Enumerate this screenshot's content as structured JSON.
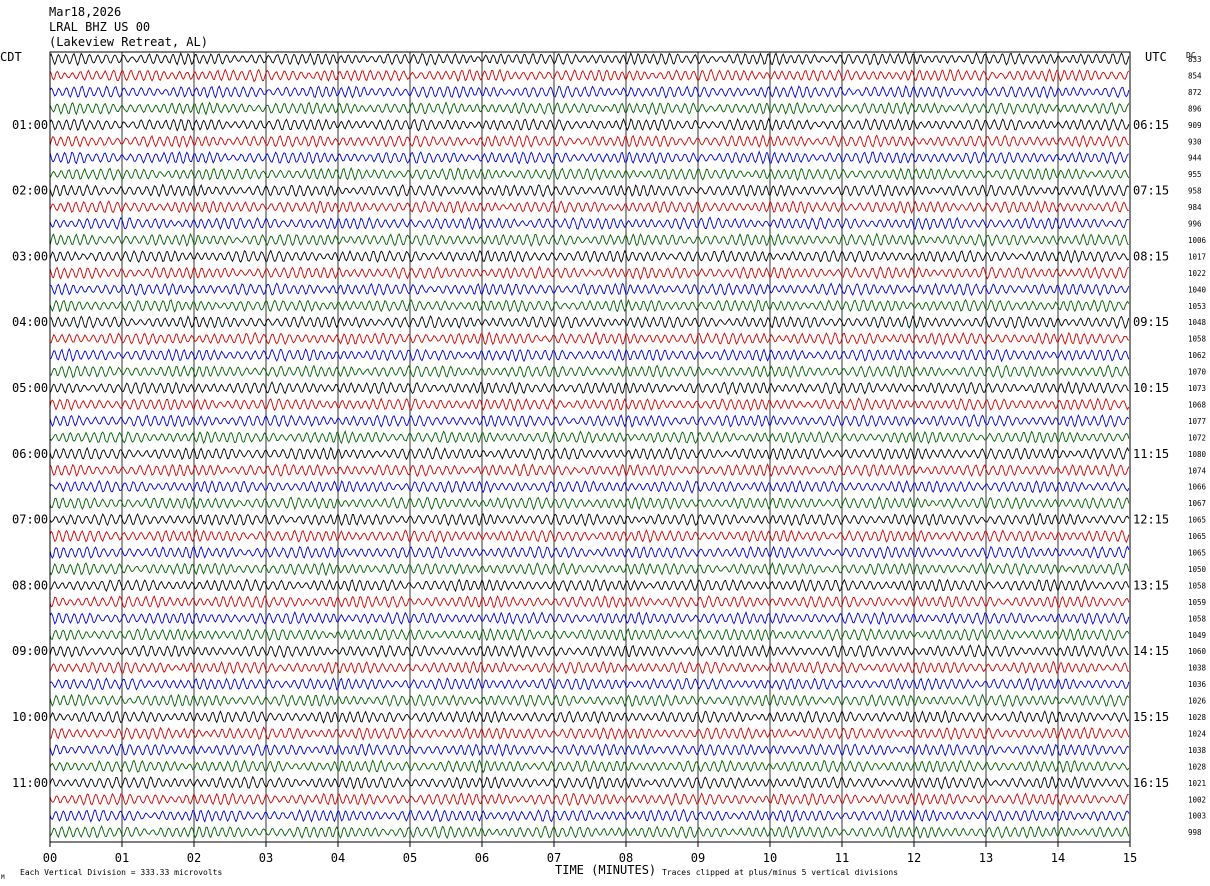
{
  "header": {
    "date": "Mar18,2026",
    "station": "LRAL BHZ US 00",
    "location": "(Lakeview Retreat, AL)"
  },
  "labels": {
    "left_tz": "CDT",
    "right_tz": "UTC",
    "dc": "DC"
  },
  "footer": {
    "scale_note": "Each Vertical Division =  333.33 microvolts",
    "clip_note": "Traces clipped at plus/minus 5 vertical divisions",
    "corner_mark": "M"
  },
  "colors": {
    "trace_cycle": [
      "#000000",
      "#d00000",
      "#0000d0",
      "#006000"
    ],
    "grid": "#000000",
    "background": "#ffffff"
  },
  "chart_data": {
    "type": "line",
    "title": "",
    "xlabel": "TIME (MINUTES)",
    "ylabel": "",
    "xlim": [
      0,
      15
    ],
    "x_ticks": [
      "00",
      "01",
      "02",
      "03",
      "04",
      "05",
      "06",
      "07",
      "08",
      "09",
      "10",
      "11",
      "12",
      "13",
      "14",
      "15"
    ],
    "grid": true,
    "rows_per_hour": 4,
    "row_count": 48,
    "left_hour_labels": [
      "01:00",
      "02:00",
      "03:00",
      "04:00",
      "05:00",
      "06:00",
      "07:00",
      "08:00",
      "09:00",
      "10:00",
      "11:00"
    ],
    "right_hour_labels": [
      "06:15",
      "07:15",
      "08:15",
      "09:15",
      "10:15",
      "11:15",
      "12:15",
      "13:15",
      "14:15",
      "15:15",
      "16:15"
    ],
    "dc_offsets": [
      "833",
      "854",
      "872",
      "896",
      "909",
      "930",
      "944",
      "955",
      "958",
      "984",
      "996",
      "1006",
      "1017",
      "1022",
      "1040",
      "1053",
      "1048",
      "1058",
      "1062",
      "1070",
      "1073",
      "1068",
      "1077",
      "1072",
      "1080",
      "1074",
      "1066",
      "1067",
      "1065",
      "1065",
      "1065",
      "1050",
      "1058",
      "1059",
      "1058",
      "1049",
      "1060",
      "1038",
      "1036",
      "1026",
      "1028",
      "1024",
      "1038",
      "1028",
      "1021",
      "1002",
      "1003",
      "998"
    ],
    "series": [
      {
        "name": "",
        "color": "#000000"
      },
      {
        "name": "",
        "color": "#d00000"
      },
      {
        "name": "",
        "color": "#0000d0"
      },
      {
        "name": "",
        "color": "#006000"
      }
    ]
  }
}
